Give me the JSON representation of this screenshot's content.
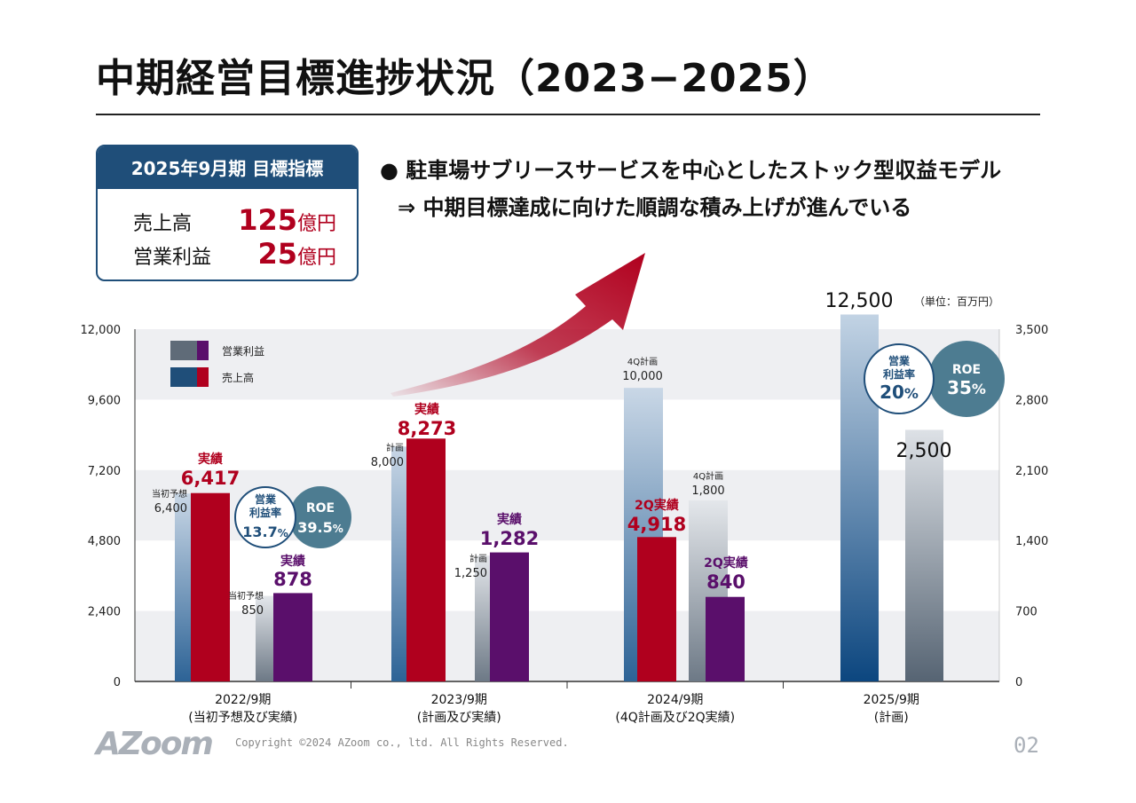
{
  "page": {
    "title": "中期経営目標進捗状況（2023−2025）",
    "target_box": {
      "heading": "2025年9月期 目標指標",
      "rows": [
        {
          "label": "売上高",
          "value": "125",
          "unit": "億円"
        },
        {
          "label": "営業利益",
          "value": "25",
          "unit": "億円"
        }
      ]
    },
    "bullets": [
      "● 駐車場サブリースサービスを中心としたストック型収益モデル",
      "⇒ 中期目標達成に向けた順調な積み上げが進んでいる"
    ],
    "unit_note": "（単位：百万円）",
    "copyright": "Copyright ©2024 AZoom co., ltd. All Rights Reserved.",
    "logo": "AZoom",
    "page_number": "02"
  },
  "colors": {
    "revenue_actual": "#b0001e",
    "profit_actual": "#5a0f6b",
    "plan_blue": "#3f74a6",
    "plan_gray": "#7d8a98",
    "navy": "#1f4e79",
    "roe_teal": "#4d7c91",
    "grid_band": "#eeeff2"
  },
  "chart_data": {
    "type": "bar",
    "categories": [
      "2022/9期\n(当初予想及び実績)",
      "2023/9期\n(計画及び実績)",
      "2024/9期\n(4Q計画及び2Q実績)",
      "2025/9期\n(計画)"
    ],
    "left_axis": {
      "ticks": [
        "0",
        "2,400",
        "4,800",
        "7,200",
        "9,600",
        "12,000"
      ],
      "range": [
        0,
        12000
      ]
    },
    "right_axis": {
      "ticks": [
        "0",
        "700",
        "1,400",
        "2,100",
        "2,800",
        "3,500"
      ],
      "range": [
        0,
        3500
      ]
    },
    "legend": [
      {
        "name": "営業利益",
        "colors": [
          "#5f6b78",
          "#5a0f6b"
        ]
      },
      {
        "name": "売上高",
        "colors": [
          "#1f4e79",
          "#b0001e"
        ]
      }
    ],
    "legend_position": "top-left",
    "series": [
      {
        "name": "売上高",
        "axis": "left",
        "plan": [
          6400,
          8000,
          10000,
          12500
        ],
        "plan_labels": [
          [
            "当初予想",
            "6,400"
          ],
          [
            "計画",
            "8,000"
          ],
          [
            "4Q計画",
            "10,000"
          ],
          [
            "",
            "12,500"
          ]
        ],
        "actual": [
          6417,
          8273,
          4918,
          null
        ],
        "actual_labels": [
          [
            "実績",
            "6,417"
          ],
          [
            "実績",
            "8,273"
          ],
          [
            "2Q実績",
            "4,918"
          ],
          null
        ]
      },
      {
        "name": "営業利益",
        "axis": "right",
        "plan": [
          850,
          1250,
          1800,
          2500
        ],
        "plan_labels": [
          [
            "当初予想",
            "850"
          ],
          [
            "計画",
            "1,250"
          ],
          [
            "4Q計画",
            "1,800"
          ],
          [
            "",
            "2,500"
          ]
        ],
        "actual": [
          878,
          1282,
          840,
          null
        ],
        "actual_labels": [
          [
            "実績",
            "878"
          ],
          [
            "実績",
            "1,282"
          ],
          [
            "2Q実績",
            "840"
          ],
          null
        ]
      }
    ],
    "annotations": [
      {
        "category": 0,
        "margin_label": [
          "営業",
          "利益率"
        ],
        "margin_value": "13.7",
        "roe_label": "ROE",
        "roe_value": "39.5"
      },
      {
        "category": 3,
        "margin_label": [
          "営業",
          "利益率"
        ],
        "margin_value": "20",
        "roe_label": "ROE",
        "roe_value": "35"
      }
    ],
    "percent_sign": "%"
  }
}
